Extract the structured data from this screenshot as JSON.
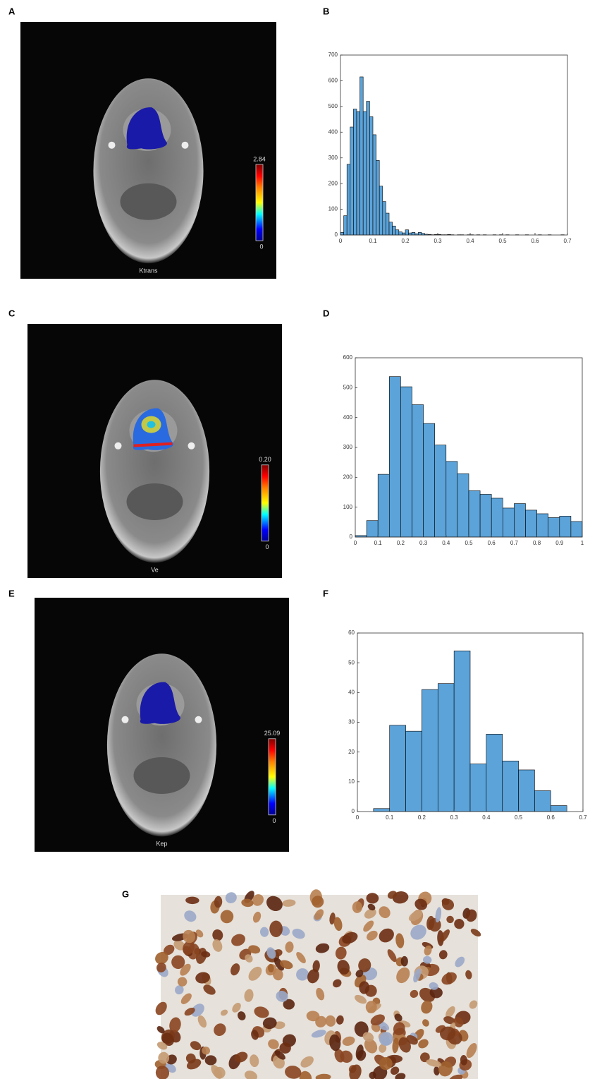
{
  "panel_labels": [
    "A",
    "B",
    "C",
    "D",
    "E",
    "F",
    "G"
  ],
  "maps": [
    {
      "name": "Ktrans",
      "colorbar_max": "2.84",
      "colorbar_min": "0"
    },
    {
      "name": "Ve",
      "colorbar_max": "0.20",
      "colorbar_min": "0"
    },
    {
      "name": "Kep",
      "colorbar_max": "25.09",
      "colorbar_min": "0"
    }
  ],
  "chart_data": [
    {
      "type": "histogram",
      "color": "#5ba3d9",
      "bins": [
        0,
        0.01,
        0.02,
        0.03,
        0.04,
        0.05,
        0.06,
        0.07,
        0.08,
        0.09,
        0.1,
        0.11,
        0.12,
        0.13,
        0.14,
        0.15,
        0.16,
        0.17,
        0.18,
        0.19,
        0.2,
        0.21,
        0.22,
        0.23,
        0.24,
        0.25,
        0.26,
        0.27,
        0.28,
        0.29,
        0.3,
        0.31,
        0.32,
        0.33,
        0.34,
        0.35,
        0.36,
        0.37,
        0.38,
        0.39,
        0.4,
        0.41,
        0.42,
        0.43,
        0.44,
        0.45,
        0.46,
        0.47,
        0.48,
        0.49,
        0.5,
        0.51,
        0.52,
        0.53,
        0.54,
        0.55,
        0.56,
        0.57,
        0.58,
        0.59,
        0.6,
        0.61,
        0.62,
        0.63,
        0.64,
        0.65,
        0.66,
        0.67,
        0.68,
        0.69,
        0.7
      ],
      "values": [
        10,
        75,
        275,
        420,
        490,
        480,
        615,
        480,
        520,
        460,
        390,
        290,
        190,
        130,
        85,
        50,
        35,
        20,
        12,
        8,
        20,
        8,
        10,
        5,
        10,
        6,
        3,
        2,
        1,
        2,
        2,
        1,
        1,
        2,
        1,
        0,
        1,
        1,
        0,
        1,
        1,
        0,
        1,
        0,
        1,
        0,
        0,
        1,
        0,
        1,
        0,
        1,
        0,
        0,
        1,
        0,
        0,
        1,
        0,
        0,
        0,
        1,
        0,
        0,
        1,
        0,
        0,
        0,
        1,
        0
      ],
      "xlim": [
        0,
        0.7
      ],
      "ylim": [
        0,
        700
      ],
      "xticks": [
        0,
        0.1,
        0.2,
        0.3,
        0.4,
        0.5,
        0.6,
        0.7
      ],
      "yticks": [
        0,
        100,
        200,
        300,
        400,
        500,
        600,
        700
      ]
    },
    {
      "type": "histogram",
      "color": "#5ba3d9",
      "bins": [
        0,
        0.05,
        0.1,
        0.15,
        0.2,
        0.25,
        0.3,
        0.35,
        0.4,
        0.45,
        0.5,
        0.55,
        0.6,
        0.65,
        0.7,
        0.75,
        0.8,
        0.85,
        0.9,
        0.95,
        1
      ],
      "values": [
        5,
        55,
        210,
        537,
        503,
        443,
        380,
        308,
        253,
        212,
        155,
        143,
        130,
        97,
        112,
        90,
        78,
        65,
        70,
        52
      ],
      "xlim": [
        0,
        1
      ],
      "ylim": [
        0,
        600
      ],
      "xticks": [
        0,
        0.1,
        0.2,
        0.3,
        0.4,
        0.5,
        0.6,
        0.7,
        0.8,
        0.9,
        1
      ],
      "yticks": [
        0,
        100,
        200,
        300,
        400,
        500,
        600
      ]
    },
    {
      "type": "histogram",
      "color": "#5ba3d9",
      "bins": [
        0.05,
        0.1,
        0.15,
        0.2,
        0.25,
        0.3,
        0.35,
        0.4,
        0.45,
        0.5,
        0.55,
        0.6,
        0.65
      ],
      "values": [
        1,
        29,
        27,
        41,
        43,
        54,
        16,
        26,
        17,
        14,
        7,
        2
      ],
      "xlim": [
        0,
        0.7
      ],
      "ylim": [
        0,
        60
      ],
      "xticks": [
        0,
        0.1,
        0.2,
        0.3,
        0.4,
        0.5,
        0.6,
        0.7
      ],
      "yticks": [
        0,
        10,
        20,
        30,
        40,
        50,
        60
      ]
    }
  ]
}
